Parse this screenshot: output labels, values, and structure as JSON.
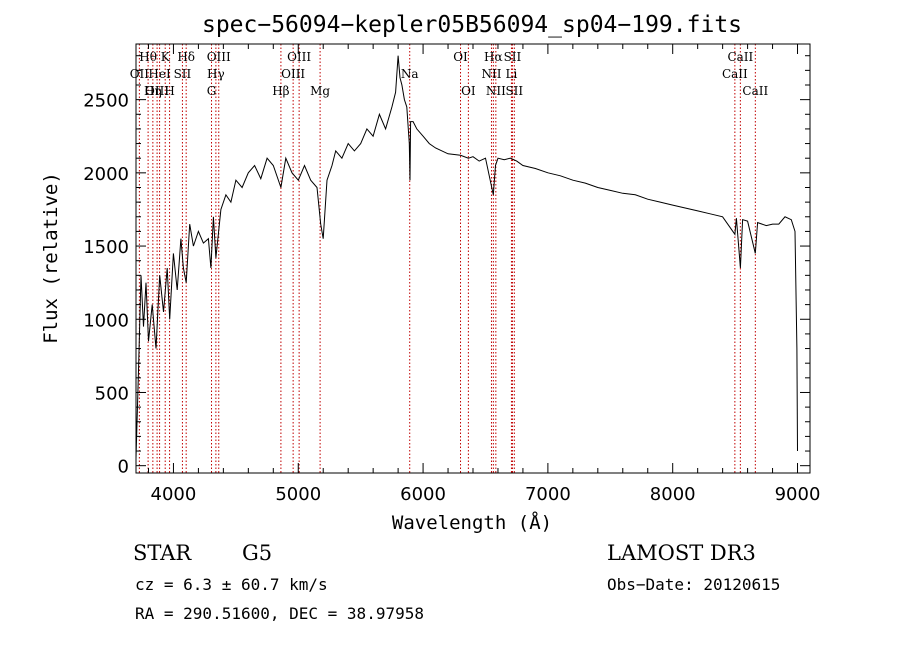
{
  "chart_data": {
    "type": "line",
    "title": "spec−56094−kepler05B56094_sp04−199.fits",
    "xlabel": "Wavelength (Å)",
    "ylabel": "Flux (relative)",
    "xlim": [
      3700,
      9100
    ],
    "ylim": [
      -50,
      2880
    ],
    "xticks": [
      4000,
      5000,
      6000,
      7000,
      8000,
      9000
    ],
    "yticks": [
      0,
      500,
      1000,
      1500,
      2000,
      2500
    ],
    "series": [
      {
        "name": "flux",
        "points": [
          [
            3700,
            50
          ],
          [
            3720,
            650
          ],
          [
            3740,
            1300
          ],
          [
            3760,
            950
          ],
          [
            3780,
            1250
          ],
          [
            3800,
            850
          ],
          [
            3830,
            1100
          ],
          [
            3860,
            800
          ],
          [
            3890,
            1300
          ],
          [
            3920,
            1050
          ],
          [
            3950,
            1350
          ],
          [
            3970,
            1000
          ],
          [
            4000,
            1450
          ],
          [
            4030,
            1200
          ],
          [
            4060,
            1550
          ],
          [
            4080,
            1350
          ],
          [
            4102,
            1250
          ],
          [
            4130,
            1650
          ],
          [
            4160,
            1500
          ],
          [
            4200,
            1600
          ],
          [
            4240,
            1520
          ],
          [
            4280,
            1550
          ],
          [
            4300,
            1350
          ],
          [
            4320,
            1700
          ],
          [
            4340,
            1420
          ],
          [
            4380,
            1750
          ],
          [
            4420,
            1850
          ],
          [
            4460,
            1800
          ],
          [
            4500,
            1950
          ],
          [
            4550,
            1900
          ],
          [
            4600,
            2000
          ],
          [
            4650,
            2050
          ],
          [
            4700,
            1960
          ],
          [
            4750,
            2100
          ],
          [
            4800,
            2050
          ],
          [
            4861,
            1900
          ],
          [
            4900,
            2100
          ],
          [
            4950,
            2000
          ],
          [
            5000,
            1950
          ],
          [
            5050,
            2050
          ],
          [
            5100,
            1950
          ],
          [
            5150,
            1900
          ],
          [
            5180,
            1650
          ],
          [
            5200,
            1550
          ],
          [
            5230,
            1950
          ],
          [
            5270,
            2050
          ],
          [
            5300,
            2150
          ],
          [
            5350,
            2100
          ],
          [
            5400,
            2200
          ],
          [
            5450,
            2150
          ],
          [
            5500,
            2200
          ],
          [
            5550,
            2300
          ],
          [
            5600,
            2250
          ],
          [
            5650,
            2400
          ],
          [
            5700,
            2300
          ],
          [
            5750,
            2450
          ],
          [
            5780,
            2550
          ],
          [
            5800,
            2800
          ],
          [
            5815,
            2650
          ],
          [
            5830,
            2600
          ],
          [
            5850,
            2500
          ],
          [
            5870,
            2450
          ],
          [
            5890,
            2200
          ],
          [
            5895,
            1950
          ],
          [
            5900,
            2350
          ],
          [
            5920,
            2350
          ],
          [
            5950,
            2300
          ],
          [
            6000,
            2250
          ],
          [
            6050,
            2200
          ],
          [
            6100,
            2170
          ],
          [
            6200,
            2130
          ],
          [
            6300,
            2120
          ],
          [
            6363,
            2100
          ],
          [
            6400,
            2110
          ],
          [
            6450,
            2080
          ],
          [
            6500,
            2100
          ],
          [
            6563,
            1850
          ],
          [
            6580,
            2050
          ],
          [
            6600,
            2100
          ],
          [
            6650,
            2090
          ],
          [
            6700,
            2100
          ],
          [
            6750,
            2080
          ],
          [
            6800,
            2050
          ],
          [
            6900,
            2030
          ],
          [
            7000,
            2000
          ],
          [
            7100,
            1980
          ],
          [
            7200,
            1950
          ],
          [
            7300,
            1930
          ],
          [
            7400,
            1900
          ],
          [
            7500,
            1880
          ],
          [
            7600,
            1860
          ],
          [
            7700,
            1850
          ],
          [
            7800,
            1820
          ],
          [
            7900,
            1800
          ],
          [
            8000,
            1780
          ],
          [
            8100,
            1760
          ],
          [
            8200,
            1740
          ],
          [
            8300,
            1720
          ],
          [
            8400,
            1700
          ],
          [
            8498,
            1580
          ],
          [
            8510,
            1690
          ],
          [
            8542,
            1350
          ],
          [
            8560,
            1680
          ],
          [
            8600,
            1670
          ],
          [
            8662,
            1450
          ],
          [
            8680,
            1660
          ],
          [
            8750,
            1640
          ],
          [
            8800,
            1650
          ],
          [
            8850,
            1650
          ],
          [
            8900,
            1700
          ],
          [
            8950,
            1680
          ],
          [
            8980,
            1600
          ],
          [
            8995,
            800
          ],
          [
            9000,
            100
          ]
        ]
      }
    ],
    "spectral_lines": [
      {
        "label": "Hθ",
        "x": 3797,
        "row": 0
      },
      {
        "label": "OII",
        "x": 3727,
        "row": 1
      },
      {
        "label": "OIII",
        "x": 3869,
        "row": 2
      },
      {
        "label": "K",
        "x": 3934,
        "row": 0
      },
      {
        "label": "HeI",
        "x": 3889,
        "row": 1
      },
      {
        "label": "Hη",
        "x": 3835,
        "row": 2
      },
      {
        "label": "Hδ",
        "x": 4102,
        "row": 0
      },
      {
        "label": "SII",
        "x": 4072,
        "row": 1
      },
      {
        "label": "H",
        "x": 3969,
        "row": 2
      },
      {
        "label": "OIII",
        "x": 4363,
        "row": 0
      },
      {
        "label": "Hγ",
        "x": 4340,
        "row": 1
      },
      {
        "label": "G",
        "x": 4305,
        "row": 2
      },
      {
        "label": "OIII",
        "x": 5007,
        "row": 0
      },
      {
        "label": "OIII",
        "x": 4959,
        "row": 1
      },
      {
        "label": "Hβ",
        "x": 4861,
        "row": 2
      },
      {
        "label": "Mg",
        "x": 5175,
        "row": 2
      },
      {
        "label": "Na",
        "x": 5893,
        "row": 1
      },
      {
        "label": "OI",
        "x": 6300,
        "row": 0
      },
      {
        "label": "OI",
        "x": 6363,
        "row": 2
      },
      {
        "label": "Hα",
        "x": 6563,
        "row": 0
      },
      {
        "label": "NII",
        "x": 6548,
        "row": 1
      },
      {
        "label": "NII",
        "x": 6583,
        "row": 2
      },
      {
        "label": "SII",
        "x": 6716,
        "row": 0
      },
      {
        "label": "Li",
        "x": 6708,
        "row": 1
      },
      {
        "label": "SII",
        "x": 6731,
        "row": 2
      },
      {
        "label": "CaII",
        "x": 8542,
        "row": 0
      },
      {
        "label": "CaII",
        "x": 8498,
        "row": 1
      },
      {
        "label": "CaII",
        "x": 8662,
        "row": 2
      }
    ],
    "line_color": "#000000",
    "marker_color": "#c00000"
  },
  "info": {
    "class": "STAR",
    "subclass": "G5",
    "survey": "LAMOST DR3",
    "redshift": "cz = 6.3 ± 60.7 km/s",
    "obs_date": "Obs−Date: 20120615",
    "coords": "RA = 290.51600, DEC =  38.97958"
  }
}
